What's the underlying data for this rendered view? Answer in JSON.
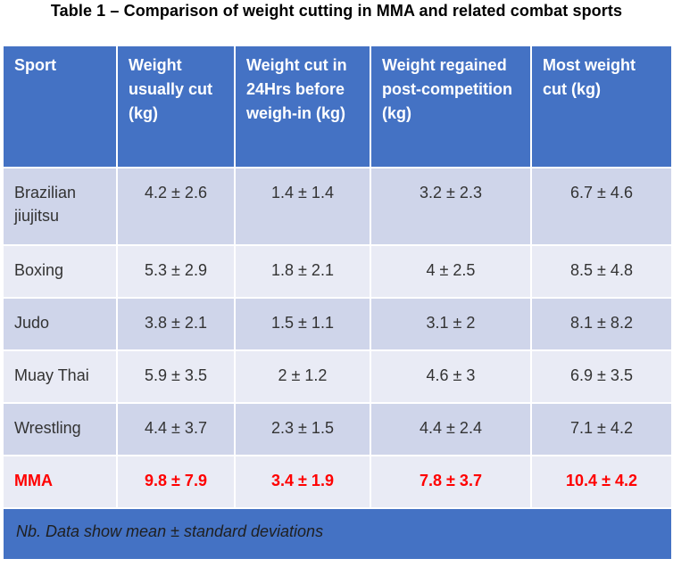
{
  "title": "Table 1 – Comparison of weight cutting in MMA and related combat sports",
  "headers": [
    "Sport",
    "Weight usually cut (kg)",
    "Weight cut in 24Hrs before weigh-in (kg)",
    "Weight regained post-competition (kg)",
    "Most weight cut (kg)"
  ],
  "rows": [
    {
      "sport": "Brazilian jiujitsu",
      "values": [
        "4.2 ± 2.6",
        "1.4 ± 1.4",
        "3.2 ± 2.3",
        "6.7 ± 4.6"
      ]
    },
    {
      "sport": "Boxing",
      "values": [
        "5.3 ± 2.9",
        "1.8 ± 2.1",
        "4 ± 2.5",
        "8.5 ± 4.8"
      ]
    },
    {
      "sport": "Judo",
      "values": [
        "3.8 ± 2.1",
        "1.5 ± 1.1",
        "3.1 ± 2",
        "8.1 ± 8.2"
      ]
    },
    {
      "sport": "Muay Thai",
      "values": [
        "5.9 ± 3.5",
        "2 ± 1.2",
        "4.6 ± 3",
        "6.9 ± 3.5"
      ]
    },
    {
      "sport": "Wrestling",
      "values": [
        "4.4 ± 3.7",
        "2.3 ± 1.5",
        "4.4 ± 2.4",
        "7.1 ± 4.2"
      ]
    },
    {
      "sport": "MMA",
      "values": [
        "9.8 ± 7.9",
        "3.4 ± 1.9",
        "7.8 ± 3.7",
        "10.4 ± 4.2"
      ]
    }
  ],
  "footnote": "Nb. Data show mean ± standard deviations",
  "colors": {
    "header": "#4472c4",
    "row_dark": "#cfd5ea",
    "row_light": "#e9ebf5",
    "highlight": "#ff0000"
  }
}
